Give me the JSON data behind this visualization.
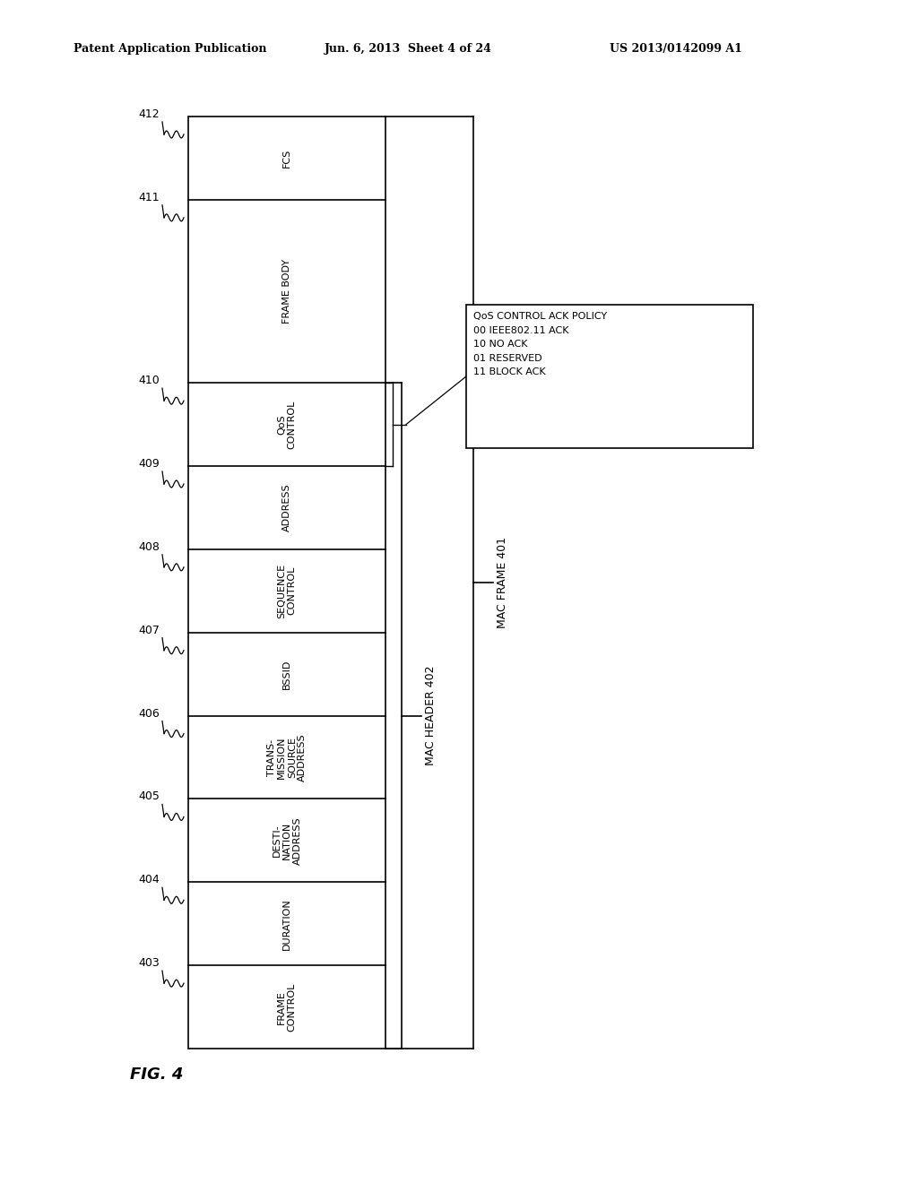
{
  "header_line1": "Patent Application Publication",
  "header_line2": "Jun. 6, 2013  Sheet 4 of 24",
  "header_line3": "US 2013/0142099 A1",
  "fig_label": "FIG. 4",
  "background_color": "#ffffff",
  "line_color": "#000000",
  "box_ids": [
    "403",
    "404",
    "405",
    "406",
    "407",
    "408",
    "409",
    "410",
    "411",
    "412"
  ],
  "box_labels": [
    "FRAME\nCONTROL",
    "DURATION",
    "DESTI-\nNATION\nADDRESS",
    "TRANS-\nMISSION\nSOURCE\nADDRESS",
    "BSSID",
    "SEQUENCE\nCONTROL",
    "ADDRESS",
    "QoS\nCONTROL",
    "FRAME BODY",
    "FCS"
  ],
  "box_rel_heights": [
    1.0,
    1.0,
    1.0,
    1.0,
    1.0,
    1.0,
    1.0,
    1.0,
    2.2,
    1.0
  ],
  "legend_lines": [
    "QoS CONTROL ACK POLICY",
    "00 IEEE802.11 ACK",
    "10 NO ACK",
    "01 RESERVED",
    "11 BLOCK ACK"
  ],
  "font_size_box": 8,
  "font_size_id": 9,
  "font_size_legend": 8,
  "font_size_header": 9,
  "font_size_fig": 13,
  "font_size_brace_label": 9
}
